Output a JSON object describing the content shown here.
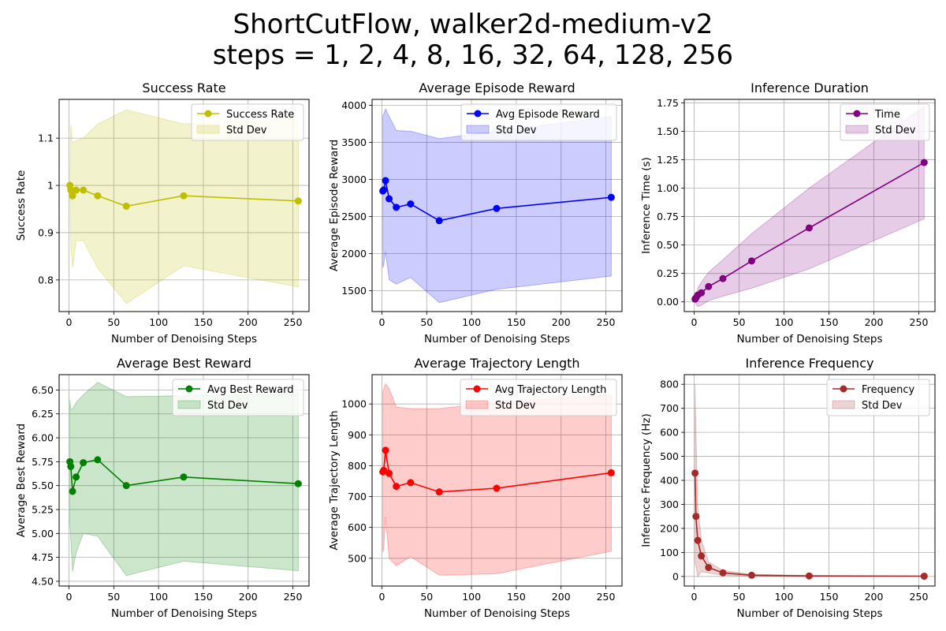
{
  "figure": {
    "title_line1": "ShortCutFlow, walker2d-medium-v2",
    "title_line2": "steps = 1, 2, 4, 8, 16, 32, 64, 128, 256"
  },
  "chart_data": [
    {
      "type": "line",
      "title": "Success Rate",
      "xlabel": "Number of Denoising Steps",
      "ylabel": "Success Rate",
      "color": "#bfbf00",
      "x": [
        1,
        2,
        4,
        8,
        16,
        32,
        64,
        128,
        256
      ],
      "xlim": [
        -11,
        268
      ],
      "ylim": [
        0.733,
        1.182
      ],
      "xticks": [
        0,
        50,
        100,
        150,
        200,
        250
      ],
      "yticks": [
        0.8,
        0.9,
        1.0,
        1.1
      ],
      "series": [
        {
          "name": "Success Rate",
          "values": [
            1.0,
            0.99,
            0.978,
            0.99,
            0.99,
            0.978,
            0.956,
            0.978,
            0.967
          ],
          "std_upper": [
            1.0,
            1.13,
            1.09,
            1.095,
            1.1,
            1.13,
            1.16,
            1.13,
            1.14
          ],
          "std_lower": [
            1.0,
            0.87,
            0.825,
            0.883,
            0.883,
            0.825,
            0.75,
            0.83,
            0.785
          ]
        }
      ],
      "legend": [
        "Success Rate",
        "Std Dev"
      ],
      "legend_position": "top-right",
      "grid": true
    },
    {
      "type": "line",
      "title": "Average Episode Reward",
      "xlabel": "Number of Denoising Steps",
      "ylabel": "Average Episode Reward",
      "color": "#0000ff",
      "x": [
        1,
        2,
        4,
        8,
        16,
        32,
        64,
        128,
        256
      ],
      "xlim": [
        -11,
        268
      ],
      "ylim": [
        1220,
        4080
      ],
      "xticks": [
        0,
        50,
        100,
        150,
        200,
        250
      ],
      "yticks": [
        1500,
        2000,
        2500,
        3000,
        3500,
        4000
      ],
      "series": [
        {
          "name": "Avg Episode Reward",
          "values": [
            2845,
            2860,
            2985,
            2740,
            2625,
            2670,
            2445,
            2610,
            2760
          ],
          "std_upper": [
            3860,
            3880,
            3950,
            3850,
            3660,
            3650,
            3550,
            3650,
            3850
          ],
          "std_lower": [
            1810,
            1850,
            2030,
            1650,
            1590,
            1680,
            1340,
            1520,
            1700
          ]
        }
      ],
      "legend": [
        "Avg Episode Reward",
        "Std Dev"
      ],
      "legend_position": "top-right",
      "grid": true
    },
    {
      "type": "line",
      "title": "Inference Duration",
      "xlabel": "Number of Denoising Steps",
      "ylabel": "Inference Time (s)",
      "color": "#800080",
      "x": [
        1,
        2,
        4,
        8,
        16,
        32,
        64,
        128,
        256
      ],
      "xlim": [
        -11,
        268
      ],
      "ylim": [
        -0.085,
        1.78
      ],
      "xticks": [
        0,
        50,
        100,
        150,
        200,
        250
      ],
      "yticks": [
        0.0,
        0.25,
        0.5,
        0.75,
        1.0,
        1.25,
        1.5,
        1.75
      ],
      "ytick_labels": [
        "0.00",
        "0.25",
        "0.50",
        "0.75",
        "1.00",
        "1.25",
        "1.50",
        "1.75"
      ],
      "series": [
        {
          "name": "Time",
          "values": [
            0.025,
            0.035,
            0.06,
            0.08,
            0.135,
            0.205,
            0.36,
            0.65,
            1.225
          ],
          "std_upper": [
            0.05,
            0.06,
            0.12,
            0.175,
            0.26,
            0.37,
            0.6,
            1.0,
            1.72
          ],
          "std_lower": [
            0.0,
            -0.02,
            -0.04,
            -0.03,
            0.01,
            0.05,
            0.12,
            0.29,
            0.73
          ]
        }
      ],
      "legend": [
        "Time",
        "Std Dev"
      ],
      "legend_position": "top-right",
      "grid": true
    },
    {
      "type": "line",
      "title": "Average Best Reward",
      "xlabel": "Number of Denoising Steps",
      "ylabel": "Average Best Reward",
      "color": "#008000",
      "x": [
        1,
        2,
        4,
        8,
        16,
        32,
        64,
        128,
        256
      ],
      "xlim": [
        -11,
        268
      ],
      "ylim": [
        4.45,
        6.66
      ],
      "xticks": [
        0,
        50,
        100,
        150,
        200,
        250
      ],
      "yticks": [
        4.5,
        4.75,
        5.0,
        5.25,
        5.5,
        5.75,
        6.0,
        6.25,
        6.5
      ],
      "ytick_labels": [
        "4.50",
        "4.75",
        "5.00",
        "5.25",
        "5.50",
        "5.75",
        "6.00",
        "6.25",
        "6.50"
      ],
      "series": [
        {
          "name": "Avg Best Reward",
          "values": [
            5.75,
            5.7,
            5.44,
            5.59,
            5.74,
            5.77,
            5.5,
            5.59,
            5.52
          ],
          "std_upper": [
            6.4,
            6.3,
            6.3,
            6.37,
            6.45,
            6.58,
            6.43,
            6.44,
            6.46
          ],
          "std_lower": [
            5.1,
            4.95,
            4.6,
            4.8,
            5.0,
            4.97,
            4.56,
            4.71,
            4.61
          ]
        }
      ],
      "legend": [
        "Avg Best Reward",
        "Std Dev"
      ],
      "legend_position": "top-right",
      "grid": true
    },
    {
      "type": "line",
      "title": "Average Trajectory Length",
      "xlabel": "Number of Denoising Steps",
      "ylabel": "Average Trajectory Length",
      "color": "#ff0000",
      "x": [
        1,
        2,
        4,
        8,
        16,
        32,
        64,
        128,
        256
      ],
      "xlim": [
        -11,
        268
      ],
      "ylim": [
        410,
        1095
      ],
      "xticks": [
        0,
        50,
        100,
        150,
        200,
        250
      ],
      "yticks": [
        500,
        600,
        700,
        800,
        900,
        1000
      ],
      "series": [
        {
          "name": "Avg Trajectory Length",
          "values": [
            780,
            785,
            850,
            775,
            733,
            745,
            715,
            727,
            777
          ],
          "std_upper": [
            1040,
            1050,
            1065,
            1050,
            990,
            985,
            985,
            1005,
            1030
          ],
          "std_lower": [
            520,
            530,
            635,
            500,
            476,
            505,
            445,
            450,
            523
          ]
        }
      ],
      "legend": [
        "Avg Trajectory Length",
        "Std Dev"
      ],
      "legend_position": "top-right",
      "grid": true
    },
    {
      "type": "line",
      "title": "Inference Frequency",
      "xlabel": "Number of Denoising Steps",
      "ylabel": "Inference Frequency (Hz)",
      "color": "#a52a2a",
      "x": [
        1,
        2,
        4,
        8,
        16,
        32,
        64,
        128,
        256
      ],
      "xlim": [
        -11,
        268
      ],
      "ylim": [
        -40,
        840
      ],
      "xticks": [
        0,
        50,
        100,
        150,
        200,
        250
      ],
      "yticks": [
        0,
        100,
        200,
        300,
        400,
        500,
        600,
        700,
        800
      ],
      "series": [
        {
          "name": "Frequency",
          "values": [
            430,
            250,
            150,
            85,
            37,
            15,
            5,
            2,
            1
          ],
          "std_upper": [
            800,
            600,
            300,
            150,
            60,
            25,
            9,
            4,
            2
          ],
          "std_lower": [
            60,
            40,
            0,
            20,
            14,
            5,
            1,
            0,
            0
          ]
        }
      ],
      "legend": [
        "Frequency",
        "Std Dev"
      ],
      "legend_position": "top-right",
      "grid": true
    }
  ]
}
